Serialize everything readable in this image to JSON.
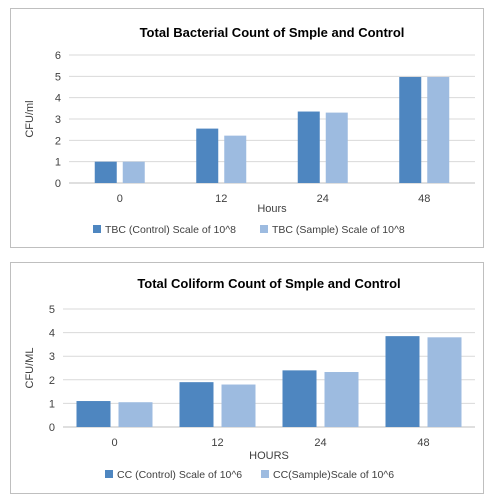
{
  "chart_data": [
    {
      "type": "bar",
      "title": "Total Bacterial Count of Smple and Control",
      "xlabel": "Hours",
      "ylabel": "CFU/ml",
      "categories": [
        "0",
        "12",
        "24",
        "48"
      ],
      "ylim": [
        0,
        6
      ],
      "yticks": [
        "0",
        "1",
        "2",
        "3",
        "4",
        "5",
        "6"
      ],
      "grid": true,
      "legend_position": "bottom",
      "series": [
        {
          "name": "TBC (Control) Scale of 10^8",
          "values": [
            1.0,
            2.55,
            3.35,
            4.97
          ],
          "color": "#4e86c0"
        },
        {
          "name": "TBC (Sample) Scale of 10^8",
          "values": [
            1.0,
            2.22,
            3.3,
            4.97
          ],
          "color": "#9dbbe0"
        }
      ]
    },
    {
      "type": "bar",
      "title": "Total Coliform  Count of Smple and Control",
      "xlabel": "HOURS",
      "ylabel": "CFU/ML",
      "categories": [
        "0",
        "12",
        "24",
        "48"
      ],
      "ylim": [
        0,
        5
      ],
      "yticks": [
        "0",
        "1",
        "2",
        "3",
        "4",
        "5"
      ],
      "grid": true,
      "legend_position": "bottom",
      "series": [
        {
          "name": "CC (Control) Scale of 10^6",
          "values": [
            1.1,
            1.9,
            2.4,
            3.85
          ],
          "color": "#4e86c0"
        },
        {
          "name": "CC(Sample)Scale of 10^6",
          "values": [
            1.05,
            1.8,
            2.33,
            3.8
          ],
          "color": "#9dbbe0"
        }
      ]
    }
  ]
}
